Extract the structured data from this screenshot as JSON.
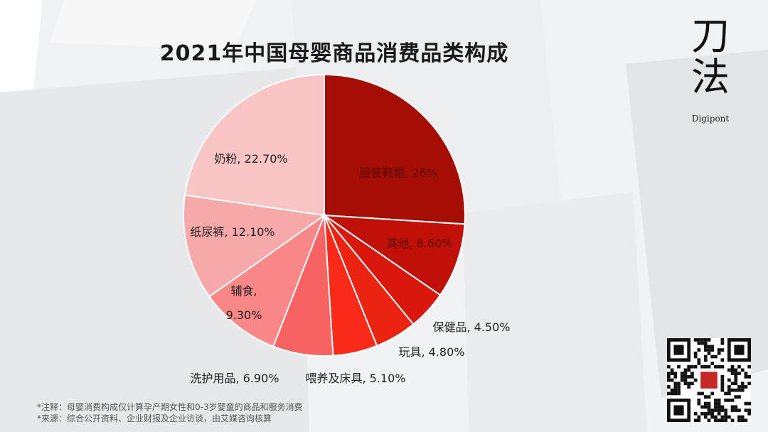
{
  "title": "2021年中国母婴商品消费品类构成",
  "brand": {
    "name_line1": "刀",
    "name_line2": "法",
    "name_en": "Digipont"
  },
  "notes": [
    "*注释：母婴消费构成仅计算孕产期女性和0-3岁婴童的商品和服务消费",
    "*来源：综合公开资料、企业财报及企业访谈，由艾媒咨询核算"
  ],
  "chart_data": {
    "type": "pie",
    "title": "2021年中国母婴商品消费品类构成",
    "slices": [
      {
        "label": "服装鞋帽",
        "value": 26,
        "display": "26%",
        "color": "#a50e05"
      },
      {
        "label": "其他",
        "value": 8.6,
        "display": "8.60%",
        "color": "#c01007"
      },
      {
        "label": "保健品",
        "value": 4.5,
        "display": "4.50%",
        "color": "#d9170d"
      },
      {
        "label": "玩具",
        "value": 4.8,
        "display": "4.80%",
        "color": "#eb2311"
      },
      {
        "label": "喂养及床具",
        "value": 5.1,
        "display": "5.10%",
        "color": "#fa2a1b"
      },
      {
        "label": "洗护用品",
        "value": 6.9,
        "display": "6.90%",
        "color": "#f76262"
      },
      {
        "label": "辅食",
        "value": 9.3,
        "display": "9.30%",
        "color": "#f98787"
      },
      {
        "label": "纸尿裤",
        "value": 12.1,
        "display": "12.10%",
        "color": "#f7a9a9"
      },
      {
        "label": "奶粉",
        "value": 22.7,
        "display": "22.70%",
        "color": "#f9c4c4"
      }
    ]
  }
}
